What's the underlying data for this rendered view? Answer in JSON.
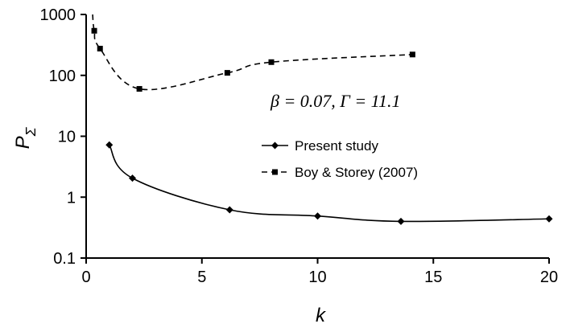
{
  "chart_data": {
    "type": "line",
    "xlabel": "k",
    "ylabel": "P",
    "ylabel_sub": "Σ",
    "xlim": [
      0,
      20
    ],
    "ylim": [
      0.1,
      1000
    ],
    "yscale": "log",
    "x_ticks": [
      "0",
      "5",
      "10",
      "15",
      "20"
    ],
    "y_ticks": [
      "0.1",
      "1",
      "10",
      "100",
      "1000"
    ],
    "grid": false,
    "legend_position": "center-right",
    "annotation": "β = 0.07, Γ = 11.1",
    "series": [
      {
        "name": "Present study",
        "marker": "diamond",
        "line_style": "solid",
        "color": "#000000",
        "x": [
          1.0,
          2.0,
          6.2,
          10.0,
          13.6,
          20.0
        ],
        "y": [
          7.2,
          2.05,
          0.62,
          0.49,
          0.4,
          0.44
        ]
      },
      {
        "name": "Boy & Storey (2007)",
        "marker": "square",
        "line_style": "dashed",
        "color": "#000000",
        "x": [
          0.35,
          0.6,
          2.3,
          6.1,
          8.0,
          14.1
        ],
        "y": [
          540,
          275,
          60,
          110,
          165,
          220
        ]
      }
    ]
  }
}
